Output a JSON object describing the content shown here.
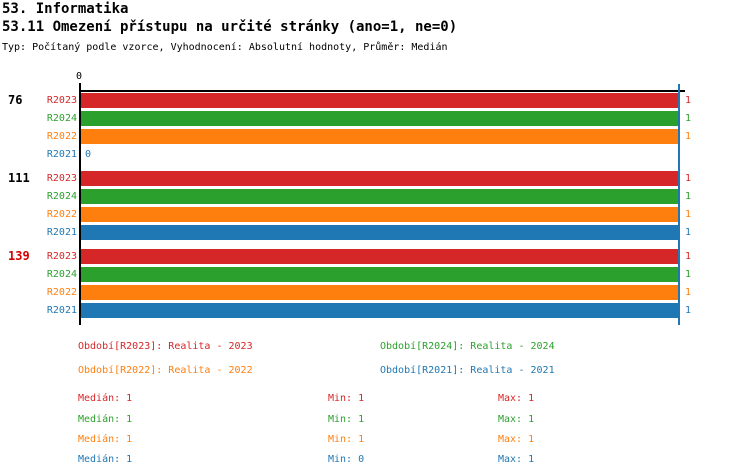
{
  "header": {
    "title": "53. Informatika",
    "subtitle": "53.11 Omezení přístupu na určité stránky (ano=1, ne=0)",
    "meta": "Typ: Počítaný podle vzorce, Vyhodnocení: Absolutní hodnoty, Průměr: Medián"
  },
  "colors": {
    "R2023": "#d62728",
    "R2024": "#2ca02c",
    "R2022": "#ff7f0e",
    "R2021": "#1f77b4",
    "axis": "#000000",
    "median_line": "#1f77b4",
    "group_label_normal": "#000000",
    "group_label_highlight": "#d40000"
  },
  "chart_data": {
    "type": "bar",
    "orientation": "horizontal",
    "axis_top_label": "0",
    "xlim": [
      0,
      1
    ],
    "grid": false,
    "median_line_value": 1,
    "series_order": [
      "R2023",
      "R2024",
      "R2022",
      "R2021"
    ],
    "groups": [
      {
        "label": "76",
        "label_color": "#000000",
        "bars": [
          {
            "series": "R2023",
            "value": 1
          },
          {
            "series": "R2024",
            "value": 1
          },
          {
            "series": "R2022",
            "value": 1
          },
          {
            "series": "R2021",
            "value": 0
          }
        ]
      },
      {
        "label": "111",
        "label_color": "#000000",
        "bars": [
          {
            "series": "R2023",
            "value": 1
          },
          {
            "series": "R2024",
            "value": 1
          },
          {
            "series": "R2022",
            "value": 1
          },
          {
            "series": "R2021",
            "value": 1
          }
        ]
      },
      {
        "label": "139",
        "label_color": "#d40000",
        "bars": [
          {
            "series": "R2023",
            "value": 1
          },
          {
            "series": "R2024",
            "value": 1
          },
          {
            "series": "R2022",
            "value": 1
          },
          {
            "series": "R2021",
            "value": 1
          }
        ]
      }
    ]
  },
  "legend": [
    {
      "series": "R2023",
      "label": "Období[R2023]: Realita - 2023"
    },
    {
      "series": "R2024",
      "label": "Období[R2024]: Realita - 2024"
    },
    {
      "series": "R2022",
      "label": "Období[R2022]: Realita - 2022"
    },
    {
      "series": "R2021",
      "label": "Období[R2021]: Realita - 2021"
    }
  ],
  "stats": [
    {
      "series": "R2023",
      "median": "Medián: 1",
      "min": "Min: 1",
      "max": "Max: 1"
    },
    {
      "series": "R2024",
      "median": "Medián: 1",
      "min": "Min: 1",
      "max": "Max: 1"
    },
    {
      "series": "R2022",
      "median": "Medián: 1",
      "min": "Min: 1",
      "max": "Max: 1"
    },
    {
      "series": "R2021",
      "median": "Medián: 1",
      "min": "Min: 0",
      "max": "Max: 1"
    }
  ]
}
